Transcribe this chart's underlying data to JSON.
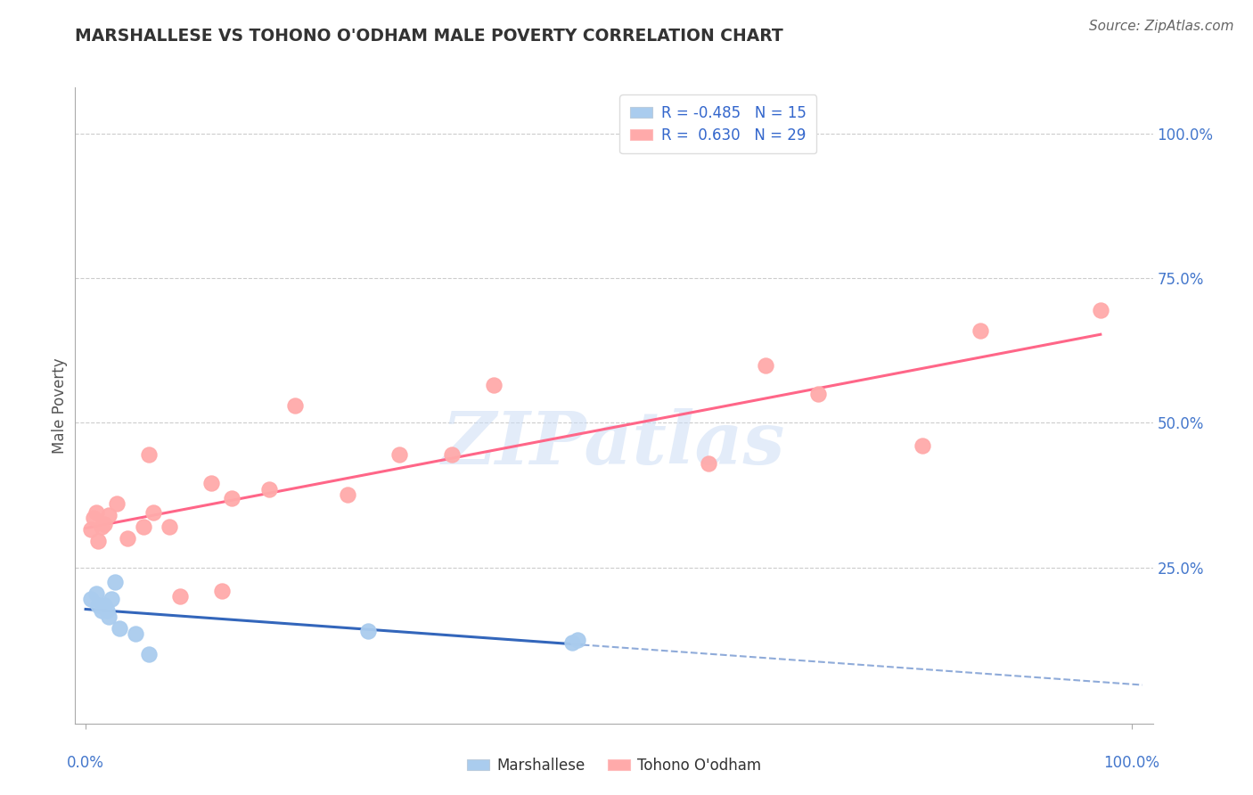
{
  "title": "MARSHALLESE VS TOHONO O'ODHAM MALE POVERTY CORRELATION CHART",
  "source": "Source: ZipAtlas.com",
  "ylabel": "Male Poverty",
  "legend_blue_r": "-0.485",
  "legend_blue_n": "15",
  "legend_pink_r": "0.630",
  "legend_pink_n": "29",
  "legend_label_blue": "Marshallese",
  "legend_label_pink": "Tohono O'odham",
  "blue_color": "#AACCEE",
  "pink_color": "#FFAAAA",
  "blue_line_color": "#3366BB",
  "pink_line_color": "#FF6688",
  "watermark": "ZIPatlas",
  "blue_x": [
    0.005,
    0.01,
    0.012,
    0.015,
    0.018,
    0.02,
    0.022,
    0.025,
    0.028,
    0.032,
    0.048,
    0.06,
    0.27,
    0.465,
    0.47
  ],
  "blue_y": [
    0.195,
    0.205,
    0.185,
    0.175,
    0.185,
    0.175,
    0.165,
    0.195,
    0.225,
    0.145,
    0.135,
    0.1,
    0.14,
    0.12,
    0.125
  ],
  "pink_x": [
    0.005,
    0.008,
    0.01,
    0.012,
    0.015,
    0.018,
    0.022,
    0.03,
    0.04,
    0.055,
    0.06,
    0.065,
    0.08,
    0.09,
    0.12,
    0.13,
    0.14,
    0.175,
    0.2,
    0.25,
    0.3,
    0.35,
    0.39,
    0.595,
    0.65,
    0.7,
    0.8,
    0.855,
    0.97
  ],
  "pink_y": [
    0.315,
    0.335,
    0.345,
    0.295,
    0.32,
    0.325,
    0.34,
    0.36,
    0.3,
    0.32,
    0.445,
    0.345,
    0.32,
    0.2,
    0.395,
    0.21,
    0.37,
    0.385,
    0.53,
    0.375,
    0.445,
    0.445,
    0.565,
    0.43,
    0.6,
    0.55,
    0.46,
    0.66,
    0.695
  ],
  "background_color": "#ffffff",
  "grid_color": "#CCCCCC",
  "ytick_positions": [
    0.25,
    0.5,
    0.75,
    1.0
  ],
  "ytick_labels": [
    "25.0%",
    "50.0%",
    "75.0%",
    "100.0%"
  ],
  "xlim": [
    -0.01,
    1.02
  ],
  "ylim": [
    -0.02,
    1.08
  ]
}
